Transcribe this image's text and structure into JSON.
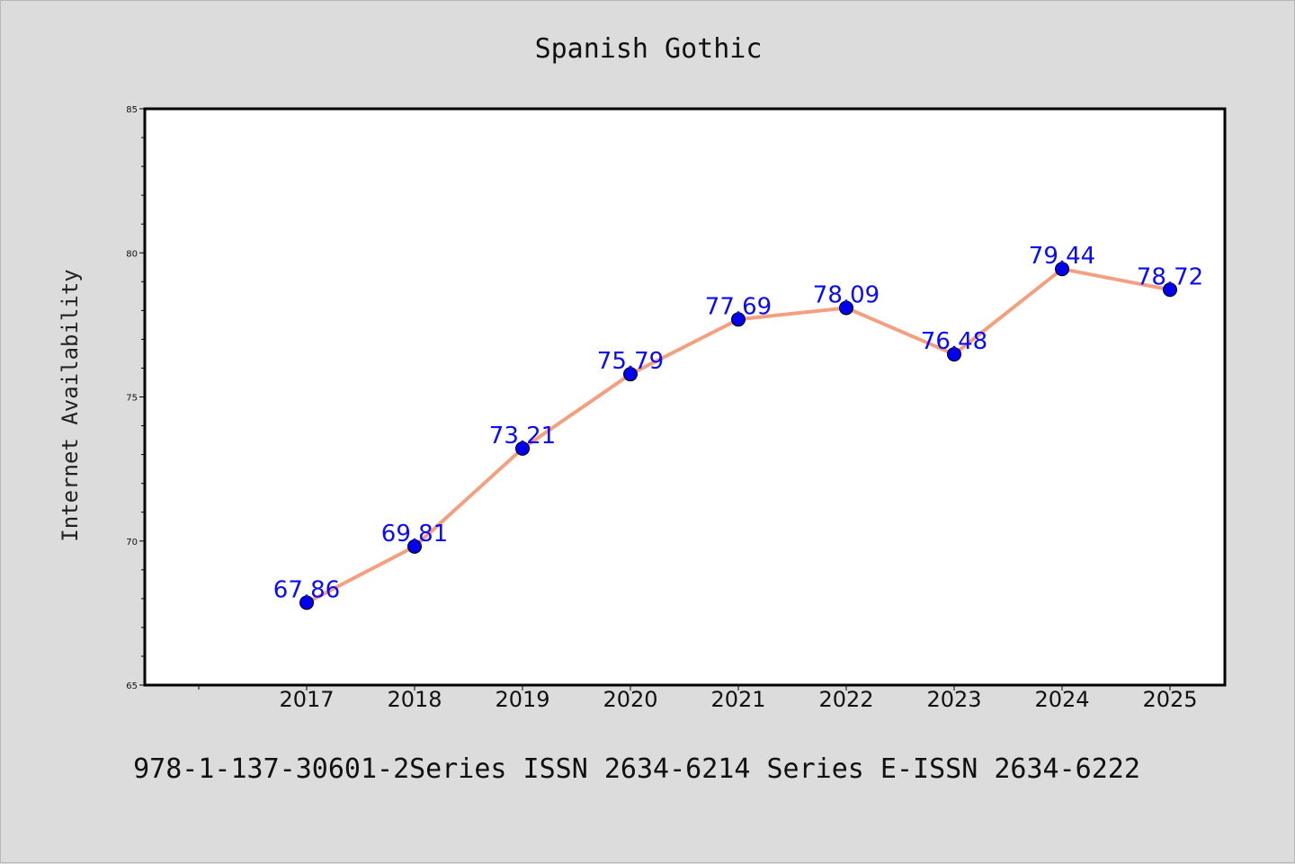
{
  "chart_data": {
    "type": "line",
    "title": "Spanish Gothic",
    "xlabel": "",
    "ylabel": "Internet Availability",
    "categories": [
      "2017",
      "2018",
      "2019",
      "2020",
      "2021",
      "2022",
      "2023",
      "2024",
      "2025"
    ],
    "series": [
      {
        "values": [
          67.86,
          69.81,
          73.21,
          75.79,
          77.69,
          78.09,
          76.48,
          79.44,
          78.72
        ],
        "line_color": "#f4a080",
        "marker_color": "#0000ee"
      }
    ],
    "data_labels": [
      "67.86",
      "69.81",
      "73.21",
      "75.79",
      "77.69",
      "78.09",
      "76.48",
      "79.44",
      "78.72"
    ],
    "ylim": [
      65,
      85
    ],
    "y_ticks": [
      "65",
      "70",
      "75",
      "80",
      "85"
    ],
    "grid": false,
    "legend": "none",
    "label_color": "#0a0aff"
  },
  "footer": {
    "text": "978-1-137-30601-2Series ISSN 2634-6214 Series E-ISSN 2634-6222"
  }
}
